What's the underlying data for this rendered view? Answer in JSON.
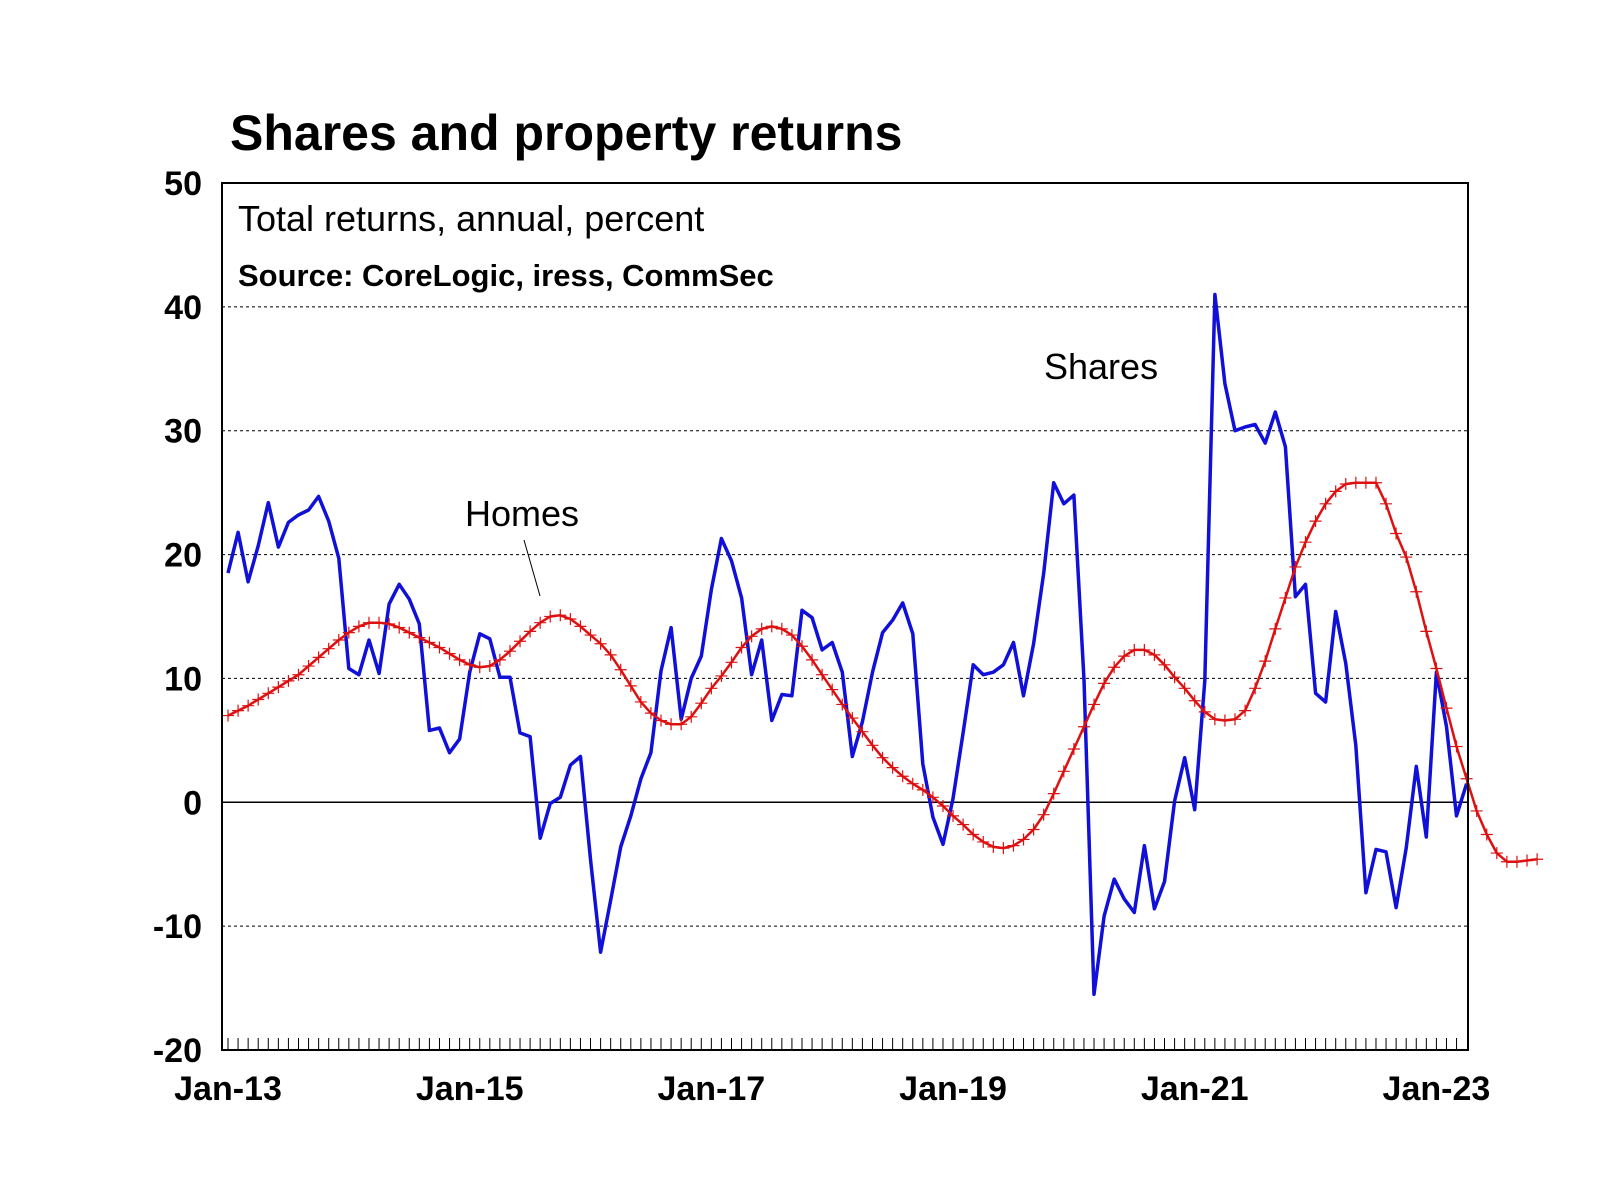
{
  "chart_data": {
    "type": "line",
    "title": "Shares and property returns",
    "subtitle": "Total returns, annual, percent",
    "source": "Source: CoreLogic, iress, CommSec",
    "xlabel": "",
    "ylabel": "",
    "ylim": [
      -20,
      50
    ],
    "yticks": [
      -20,
      -10,
      0,
      10,
      20,
      30,
      40,
      50
    ],
    "ytick_labels": [
      "-20",
      "-10",
      "0",
      "10",
      "20",
      "30",
      "40",
      "50"
    ],
    "xtick_labels": [
      "Jan-13",
      "Jan-15",
      "Jan-17",
      "Jan-19",
      "Jan-21",
      "Jan-23"
    ],
    "xtick_months": [
      0,
      24,
      48,
      72,
      96,
      120
    ],
    "x_start": "Jan-13",
    "x_range_months": [
      0,
      125
    ],
    "grid": true,
    "annotations": [
      {
        "text": "Shares",
        "series": "Shares"
      },
      {
        "text": "Homes",
        "series": "Homes"
      }
    ],
    "series": [
      {
        "name": "Shares",
        "color": "#1010d8",
        "marker": "none",
        "start_month": 0,
        "values": [
          18.5,
          21.8,
          17.8,
          20.7,
          24.2,
          20.6,
          22.6,
          23.2,
          23.6,
          24.7,
          22.7,
          19.7,
          10.8,
          10.3,
          13.1,
          10.4,
          16.0,
          17.6,
          16.4,
          14.4,
          5.8,
          6.0,
          4.0,
          5.1,
          10.5,
          13.6,
          13.2,
          10.1,
          10.1,
          5.6,
          5.3,
          -2.9,
          -0.1,
          0.4,
          3.0,
          3.7,
          -4.6,
          -12.1,
          -7.9,
          -3.6,
          -1.1,
          1.9,
          4.0,
          10.6,
          14.1,
          6.7,
          10.0,
          11.8,
          17.2,
          21.3,
          19.5,
          16.5,
          10.3,
          13.1,
          6.6,
          8.7,
          8.6,
          15.5,
          14.9,
          12.3,
          12.9,
          10.5,
          3.7,
          6.5,
          10.5,
          13.7,
          14.7,
          16.1,
          13.6,
          3.1,
          -1.2,
          -3.4,
          0.3,
          5.6,
          11.1,
          10.3,
          10.5,
          11.1,
          12.9,
          8.6,
          12.8,
          18.5,
          25.8,
          24.1,
          24.8,
          9.9,
          -15.5,
          -9.2,
          -6.2,
          -7.8,
          -8.9,
          -3.5,
          -8.6,
          -6.4,
          0.1,
          3.6,
          -0.6,
          9.8,
          41.0,
          33.8,
          30.0,
          30.3,
          30.5,
          29.0,
          31.5,
          28.7,
          16.6,
          17.6,
          8.8,
          8.1,
          15.4,
          11.2,
          4.6,
          -7.3,
          -3.8,
          -4.0,
          -8.5,
          -3.7,
          2.9,
          -2.8,
          10.5,
          6.1,
          -1.1,
          1.5
        ]
      },
      {
        "name": "Homes",
        "color": "#dd1111",
        "marker": "plus",
        "start_month": 0,
        "values": [
          7.0,
          7.4,
          7.8,
          8.3,
          8.8,
          9.3,
          9.8,
          10.3,
          11.0,
          11.7,
          12.4,
          13.1,
          13.7,
          14.2,
          14.5,
          14.5,
          14.4,
          14.1,
          13.7,
          13.3,
          12.9,
          12.5,
          12.0,
          11.5,
          11.1,
          10.9,
          11.0,
          11.5,
          12.2,
          13.0,
          13.8,
          14.5,
          15.0,
          15.1,
          14.8,
          14.2,
          13.5,
          12.8,
          11.9,
          10.7,
          9.4,
          8.1,
          7.2,
          6.6,
          6.3,
          6.3,
          6.9,
          8.0,
          9.2,
          10.2,
          11.3,
          12.5,
          13.4,
          14.0,
          14.2,
          14.0,
          13.5,
          12.6,
          11.5,
          10.3,
          9.1,
          7.9,
          6.8,
          5.7,
          4.6,
          3.6,
          2.8,
          2.1,
          1.5,
          1.0,
          0.4,
          -0.3,
          -1.1,
          -1.8,
          -2.6,
          -3.2,
          -3.6,
          -3.7,
          -3.5,
          -3.0,
          -2.2,
          -1.0,
          0.7,
          2.5,
          4.3,
          6.1,
          7.9,
          9.6,
          10.9,
          11.8,
          12.3,
          12.3,
          11.9,
          11.1,
          10.1,
          9.2,
          8.2,
          7.3,
          6.7,
          6.6,
          6.7,
          7.4,
          9.2,
          11.4,
          14.0,
          16.5,
          19.0,
          21.0,
          22.7,
          24.1,
          25.1,
          25.7,
          25.8,
          25.8,
          25.8,
          24.1,
          21.7,
          19.8,
          17.0,
          13.8,
          10.8,
          7.6,
          4.5,
          1.9,
          -0.7,
          -2.6,
          -4.1,
          -4.8,
          -4.8,
          -4.7,
          -4.6
        ]
      }
    ]
  }
}
